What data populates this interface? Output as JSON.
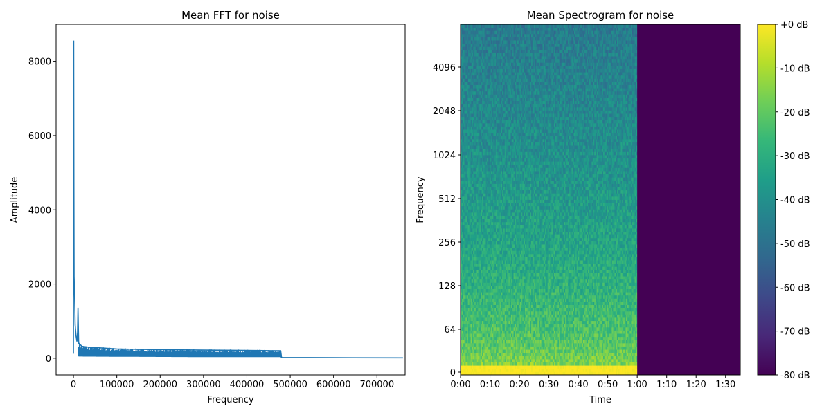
{
  "chart_data": [
    {
      "type": "line",
      "title": "Mean FFT for noise",
      "xlabel": "Frequency",
      "ylabel": "Amplitude",
      "xlim": [
        -40000,
        765000
      ],
      "ylim": [
        -450,
        9000
      ],
      "xticks": [
        0,
        100000,
        200000,
        300000,
        400000,
        500000,
        600000,
        700000
      ],
      "xtick_labels": [
        "0",
        "100000",
        "200000",
        "300000",
        "400000",
        "500000",
        "600000",
        "700000"
      ],
      "yticks": [
        0,
        2000,
        4000,
        6000,
        8000
      ],
      "ytick_labels": [
        "0",
        "2000",
        "4000",
        "6000",
        "8000"
      ],
      "grid": false,
      "series_color": "#1f77b4",
      "series": [
        {
          "points": [
            [
              0,
              120
            ],
            [
              500,
              8560
            ],
            [
              1000,
              4750
            ],
            [
              1500,
              2200
            ],
            [
              2500,
              1800
            ],
            [
              4000,
              900
            ],
            [
              6000,
              600
            ],
            [
              8000,
              450
            ],
            [
              9500,
              700
            ],
            [
              10500,
              1360
            ],
            [
              12000,
              400
            ],
            [
              20000,
              320
            ],
            [
              40000,
              290
            ],
            [
              60000,
              280
            ],
            [
              100000,
              250
            ],
            [
              150000,
              240
            ],
            [
              200000,
              230
            ],
            [
              250000,
              225
            ],
            [
              300000,
              220
            ],
            [
              350000,
              215
            ],
            [
              400000,
              210
            ],
            [
              450000,
              205
            ],
            [
              478000,
              200
            ],
            [
              480000,
              20
            ],
            [
              600000,
              15
            ],
            [
              760000,
              10
            ]
          ],
          "lower_envelope": [
            [
              0,
              50
            ],
            [
              20000,
              45
            ],
            [
              100000,
              40
            ],
            [
              200000,
              35
            ],
            [
              300000,
              30
            ],
            [
              400000,
              30
            ],
            [
              478000,
              30
            ],
            [
              480000,
              5
            ],
            [
              760000,
              5
            ]
          ]
        }
      ]
    },
    {
      "type": "heatmap",
      "title": "Mean Spectrogram for noise",
      "xlabel": "Time",
      "ylabel": "Frequency",
      "x_range_seconds": [
        0,
        95
      ],
      "signal_end_seconds": 60,
      "xtick_labels": [
        "0:00",
        "0:10",
        "0:20",
        "0:30",
        "0:40",
        "0:50",
        "1:00",
        "1:10",
        "1:20",
        "1:30"
      ],
      "yscale": "symlog",
      "ytick_labels": [
        "0",
        "64",
        "128",
        "256",
        "512",
        "1024",
        "2048",
        "4096"
      ],
      "colormap": "viridis",
      "colorbar": {
        "range_db": [
          -80,
          0
        ],
        "tick_labels": [
          "+0 dB",
          "-10 dB",
          "-20 dB",
          "-30 dB",
          "-40 dB",
          "-50 dB",
          "-60 dB",
          "-70 dB",
          "-80 dB"
        ]
      },
      "silent_db": -80,
      "low_freq_db": -8,
      "high_freq_db": -47
    }
  ]
}
